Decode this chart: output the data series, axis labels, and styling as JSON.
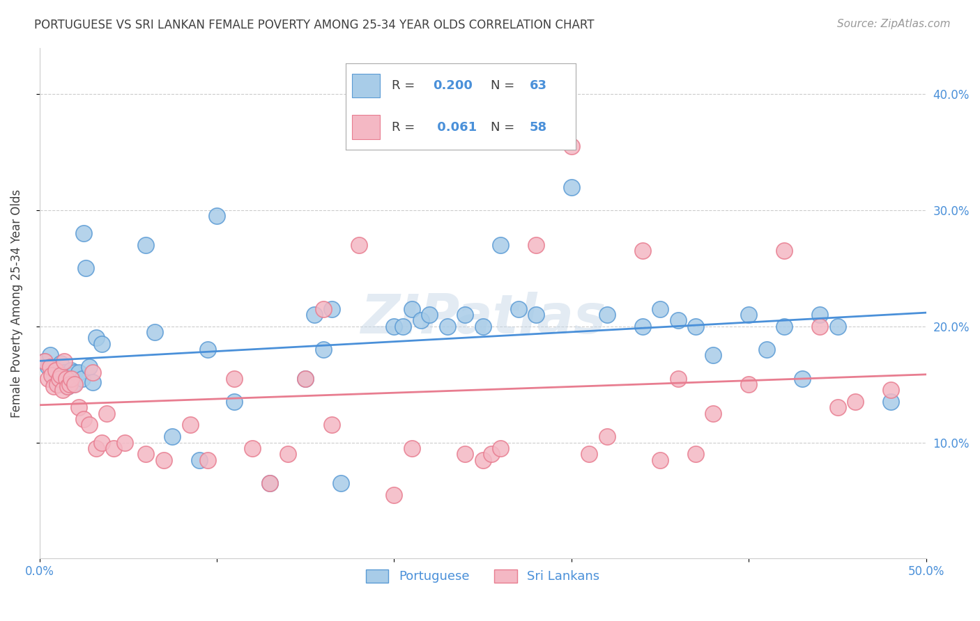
{
  "title": "PORTUGUESE VS SRI LANKAN FEMALE POVERTY AMONG 25-34 YEAR OLDS CORRELATION CHART",
  "source": "Source: ZipAtlas.com",
  "ylabel": "Female Poverty Among 25-34 Year Olds",
  "xlim": [
    0.0,
    0.5
  ],
  "ylim": [
    0.0,
    0.44
  ],
  "xticks": [
    0.0,
    0.1,
    0.2,
    0.3,
    0.4,
    0.5
  ],
  "yticks": [
    0.1,
    0.2,
    0.3,
    0.4
  ],
  "xtick_labels": [
    "0.0%",
    "",
    "",
    "",
    "",
    "50.0%"
  ],
  "ytick_labels": [
    "10.0%",
    "20.0%",
    "30.0%",
    "40.0%"
  ],
  "portuguese_x": [
    0.003,
    0.005,
    0.006,
    0.007,
    0.008,
    0.009,
    0.01,
    0.011,
    0.012,
    0.013,
    0.014,
    0.015,
    0.016,
    0.017,
    0.018,
    0.019,
    0.02,
    0.022,
    0.024,
    0.025,
    0.026,
    0.028,
    0.03,
    0.032,
    0.035,
    0.06,
    0.065,
    0.075,
    0.09,
    0.095,
    0.1,
    0.11,
    0.13,
    0.15,
    0.155,
    0.16,
    0.165,
    0.17,
    0.2,
    0.205,
    0.21,
    0.215,
    0.22,
    0.23,
    0.24,
    0.25,
    0.26,
    0.27,
    0.28,
    0.3,
    0.32,
    0.34,
    0.35,
    0.36,
    0.37,
    0.38,
    0.4,
    0.41,
    0.42,
    0.43,
    0.44,
    0.45,
    0.48
  ],
  "portuguese_y": [
    0.17,
    0.165,
    0.175,
    0.16,
    0.155,
    0.162,
    0.158,
    0.15,
    0.168,
    0.155,
    0.16,
    0.158,
    0.148,
    0.155,
    0.162,
    0.15,
    0.16,
    0.16,
    0.155,
    0.28,
    0.25,
    0.165,
    0.152,
    0.19,
    0.185,
    0.27,
    0.195,
    0.105,
    0.085,
    0.18,
    0.295,
    0.135,
    0.065,
    0.155,
    0.21,
    0.18,
    0.215,
    0.065,
    0.2,
    0.2,
    0.215,
    0.205,
    0.21,
    0.2,
    0.21,
    0.2,
    0.27,
    0.215,
    0.21,
    0.32,
    0.21,
    0.2,
    0.215,
    0.205,
    0.2,
    0.175,
    0.21,
    0.18,
    0.2,
    0.155,
    0.21,
    0.2,
    0.135
  ],
  "srilankans_x": [
    0.003,
    0.005,
    0.006,
    0.007,
    0.008,
    0.009,
    0.01,
    0.011,
    0.012,
    0.013,
    0.014,
    0.015,
    0.016,
    0.017,
    0.018,
    0.02,
    0.022,
    0.025,
    0.028,
    0.03,
    0.032,
    0.035,
    0.038,
    0.042,
    0.048,
    0.06,
    0.07,
    0.085,
    0.095,
    0.11,
    0.12,
    0.13,
    0.14,
    0.15,
    0.16,
    0.165,
    0.18,
    0.2,
    0.21,
    0.24,
    0.25,
    0.255,
    0.26,
    0.28,
    0.3,
    0.31,
    0.32,
    0.34,
    0.35,
    0.36,
    0.37,
    0.38,
    0.4,
    0.42,
    0.44,
    0.45,
    0.46,
    0.48
  ],
  "srilankans_y": [
    0.17,
    0.155,
    0.165,
    0.158,
    0.148,
    0.162,
    0.15,
    0.155,
    0.158,
    0.145,
    0.17,
    0.155,
    0.148,
    0.15,
    0.155,
    0.15,
    0.13,
    0.12,
    0.115,
    0.16,
    0.095,
    0.1,
    0.125,
    0.095,
    0.1,
    0.09,
    0.085,
    0.115,
    0.085,
    0.155,
    0.095,
    0.065,
    0.09,
    0.155,
    0.215,
    0.115,
    0.27,
    0.055,
    0.095,
    0.09,
    0.085,
    0.09,
    0.095,
    0.27,
    0.355,
    0.09,
    0.105,
    0.265,
    0.085,
    0.155,
    0.09,
    0.125,
    0.15,
    0.265,
    0.2,
    0.13,
    0.135,
    0.145
  ],
  "portuguese_color": "#a8cce8",
  "srilankans_color": "#f4b8c4",
  "portuguese_edge_color": "#5b9bd5",
  "srilankans_edge_color": "#e87d90",
  "portuguese_line_color": "#4a90d9",
  "srilankans_line_color": "#e87d90",
  "title_color": "#404040",
  "source_color": "#999999",
  "axis_tick_color": "#4a90d9",
  "watermark": "ZIPatlas",
  "background_color": "#ffffff",
  "grid_color": "#cccccc",
  "legend_text_color": "#404040",
  "legend_value_color": "#4a90d9"
}
